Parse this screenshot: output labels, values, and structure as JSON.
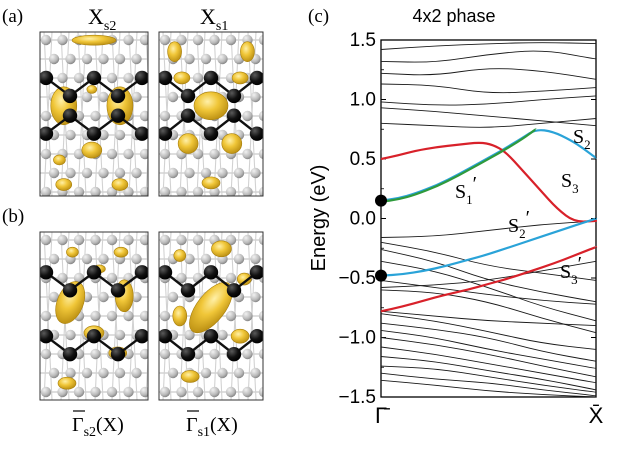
{
  "panels": {
    "a": {
      "letter": "(a)",
      "left_title_main": "X",
      "left_title_sub": "s2",
      "right_title_main": "X",
      "right_title_sub": "s1"
    },
    "b": {
      "letter": "(b)",
      "left_caption_main": "Γ",
      "left_caption_sub": "s2",
      "left_caption_tail": "(X)",
      "right_caption_main": "Γ",
      "right_caption_sub": "s1",
      "right_caption_tail": "(X)"
    },
    "c": {
      "letter": "(c)"
    }
  },
  "colors": {
    "density": "#e3b82c",
    "density_dark": "#b08a12",
    "atom_black": "#0a0a0a",
    "atom_grey": "#bdbdbd",
    "red_band": "#d8212a",
    "green_band": "#2e9a3c",
    "blue_band": "#2aa3d8",
    "black_band": "#1a1a1a"
  },
  "chart_data": {
    "type": "line",
    "title": "4x2 phase",
    "xlabel": "",
    "ylabel": "Energy (eV)",
    "ylim": [
      -1.5,
      1.5
    ],
    "yticks": [
      1.5,
      1.0,
      0.5,
      0.0,
      -0.5,
      -1.0,
      -1.5
    ],
    "ytick_labels": [
      "1.5",
      "1.0",
      "0.5",
      "0.0",
      "−0.5",
      "−1.0",
      "−1.5"
    ],
    "xlim": [
      0,
      1
    ],
    "xticks": [
      0,
      1
    ],
    "xtick_labels": [
      "Γ̄",
      "X̄"
    ],
    "markers": [
      {
        "x": 0.0,
        "y": 0.15
      },
      {
        "x": 0.0,
        "y": -0.48
      }
    ],
    "labeled_bands": [
      {
        "label": "S2",
        "main": "S",
        "sub": "2",
        "prime": false,
        "color": "blue",
        "x": [
          0.0,
          0.08,
          0.16,
          0.26,
          0.36,
          0.46,
          0.56,
          0.66,
          0.72,
          0.8,
          0.88,
          0.94,
          1.0
        ],
        "y": [
          0.15,
          0.17,
          0.21,
          0.28,
          0.37,
          0.47,
          0.57,
          0.68,
          0.75,
          0.73,
          0.66,
          0.59,
          0.51
        ]
      },
      {
        "label": "S3",
        "main": "S",
        "sub": "3",
        "prime": false,
        "color": "red",
        "x": [
          0.0,
          0.08,
          0.16,
          0.26,
          0.36,
          0.46,
          0.52,
          0.58,
          0.66,
          0.74,
          0.82,
          0.9,
          1.0
        ],
        "y": [
          0.5,
          0.53,
          0.57,
          0.6,
          0.62,
          0.64,
          0.62,
          0.56,
          0.4,
          0.24,
          0.08,
          -0.03,
          -0.02
        ]
      },
      {
        "label": "S1'",
        "main": "S",
        "sub": "1",
        "prime": true,
        "color": "green",
        "x": [
          0.0,
          0.08,
          0.16,
          0.26,
          0.36,
          0.46,
          0.56,
          0.66,
          0.72
        ],
        "y": [
          0.14,
          0.16,
          0.2,
          0.27,
          0.36,
          0.46,
          0.56,
          0.67,
          0.75
        ]
      },
      {
        "label": "S2'",
        "main": "S",
        "sub": "2",
        "prime": true,
        "color": "blue",
        "x": [
          0.0,
          0.1,
          0.2,
          0.3,
          0.4,
          0.5,
          0.6,
          0.7,
          0.8,
          0.9,
          1.0
        ],
        "y": [
          -0.48,
          -0.47,
          -0.44,
          -0.4,
          -0.35,
          -0.3,
          -0.24,
          -0.18,
          -0.12,
          -0.06,
          0.0
        ]
      },
      {
        "label": "S3'",
        "main": "S",
        "sub": "3",
        "prime": true,
        "color": "red",
        "x": [
          0.0,
          0.1,
          0.2,
          0.3,
          0.4,
          0.5,
          0.6,
          0.7,
          0.8,
          0.9,
          1.0
        ],
        "y": [
          -0.78,
          -0.74,
          -0.69,
          -0.64,
          -0.6,
          -0.55,
          -0.5,
          -0.44,
          -0.38,
          -0.31,
          -0.24
        ]
      }
    ],
    "background_bands": [
      {
        "x": [
          0,
          0.25,
          0.5,
          0.75,
          1
        ],
        "y": [
          1.42,
          1.45,
          1.47,
          1.48,
          1.47
        ]
      },
      {
        "x": [
          0,
          0.25,
          0.5,
          0.75,
          1
        ],
        "y": [
          1.32,
          1.31,
          1.38,
          1.42,
          1.34
        ]
      },
      {
        "x": [
          0,
          0.25,
          0.5,
          0.75,
          1
        ],
        "y": [
          1.22,
          1.2,
          1.27,
          1.24,
          1.17
        ]
      },
      {
        "x": [
          0,
          0.25,
          0.5,
          0.75,
          1
        ],
        "y": [
          1.13,
          1.12,
          1.05,
          1.07,
          1.1
        ]
      },
      {
        "x": [
          0,
          0.25,
          0.5,
          0.75,
          1
        ],
        "y": [
          0.98,
          0.95,
          0.96,
          1.0,
          1.03
        ]
      },
      {
        "x": [
          0,
          0.25,
          0.5,
          0.75,
          1
        ],
        "y": [
          0.93,
          0.9,
          0.86,
          0.82,
          0.78
        ]
      },
      {
        "x": [
          0,
          0.25,
          0.5,
          0.75,
          1
        ],
        "y": [
          0.8,
          0.78,
          0.76,
          0.8,
          0.84
        ]
      },
      {
        "x": [
          0,
          0.25,
          0.5,
          0.75,
          1
        ],
        "y": [
          -0.16,
          -0.15,
          -0.1,
          -0.05,
          -0.02
        ]
      },
      {
        "x": [
          0,
          0.25,
          0.5,
          0.75,
          1
        ],
        "y": [
          -0.2,
          -0.28,
          -0.4,
          -0.46,
          -0.52
        ]
      },
      {
        "x": [
          0,
          0.25,
          0.5,
          0.75,
          1
        ],
        "y": [
          -0.26,
          -0.36,
          -0.52,
          -0.62,
          -0.7
        ]
      },
      {
        "x": [
          0,
          0.25,
          0.5,
          0.75,
          1
        ],
        "y": [
          -0.36,
          -0.44,
          -0.58,
          -0.74,
          -0.86
        ]
      },
      {
        "x": [
          0,
          0.25,
          0.5,
          0.75,
          1
        ],
        "y": [
          -0.52,
          -0.58,
          -0.64,
          -0.69,
          -0.72
        ]
      },
      {
        "x": [
          0,
          0.25,
          0.5,
          0.75,
          1
        ],
        "y": [
          -0.58,
          -0.56,
          -0.52,
          -0.44,
          -0.36
        ]
      },
      {
        "x": [
          0,
          0.25,
          0.5,
          0.75,
          1
        ],
        "y": [
          -0.6,
          -0.62,
          -0.7,
          -0.84,
          -0.96
        ]
      },
      {
        "x": [
          0,
          0.25,
          0.5,
          0.75,
          1
        ],
        "y": [
          -0.78,
          -0.82,
          -0.86,
          -0.88,
          -0.9
        ]
      },
      {
        "x": [
          0,
          0.25,
          0.5,
          0.75,
          1
        ],
        "y": [
          -0.8,
          -0.86,
          -0.95,
          -1.05,
          -1.1
        ]
      },
      {
        "x": [
          0,
          0.25,
          0.5,
          0.75,
          1
        ],
        "y": [
          -0.88,
          -0.93,
          -1.0,
          -1.12,
          -1.2
        ]
      },
      {
        "x": [
          0,
          0.25,
          0.5,
          0.75,
          1
        ],
        "y": [
          -0.94,
          -1.0,
          -1.1,
          -1.18,
          -1.26
        ]
      },
      {
        "x": [
          0,
          0.25,
          0.5,
          0.75,
          1
        ],
        "y": [
          -1.0,
          -1.06,
          -1.14,
          -1.24,
          -1.33
        ]
      },
      {
        "x": [
          0,
          0.25,
          0.5,
          0.75,
          1
        ],
        "y": [
          -1.08,
          -1.14,
          -1.22,
          -1.3,
          -1.38
        ]
      },
      {
        "x": [
          0,
          0.25,
          0.5,
          0.75,
          1
        ],
        "y": [
          -1.16,
          -1.2,
          -1.28,
          -1.35,
          -1.44
        ]
      },
      {
        "x": [
          0,
          0.25,
          0.5,
          0.75,
          1
        ],
        "y": [
          -1.24,
          -1.26,
          -1.33,
          -1.4,
          -1.46
        ]
      },
      {
        "x": [
          0,
          0.25,
          0.5,
          0.75,
          1
        ],
        "y": [
          -1.3,
          -1.35,
          -1.38,
          -1.44,
          -1.49
        ]
      },
      {
        "x": [
          0,
          0.25,
          0.5,
          0.75,
          1
        ],
        "y": [
          -1.36,
          -1.4,
          -1.45,
          -1.48,
          -1.5
        ]
      }
    ]
  }
}
